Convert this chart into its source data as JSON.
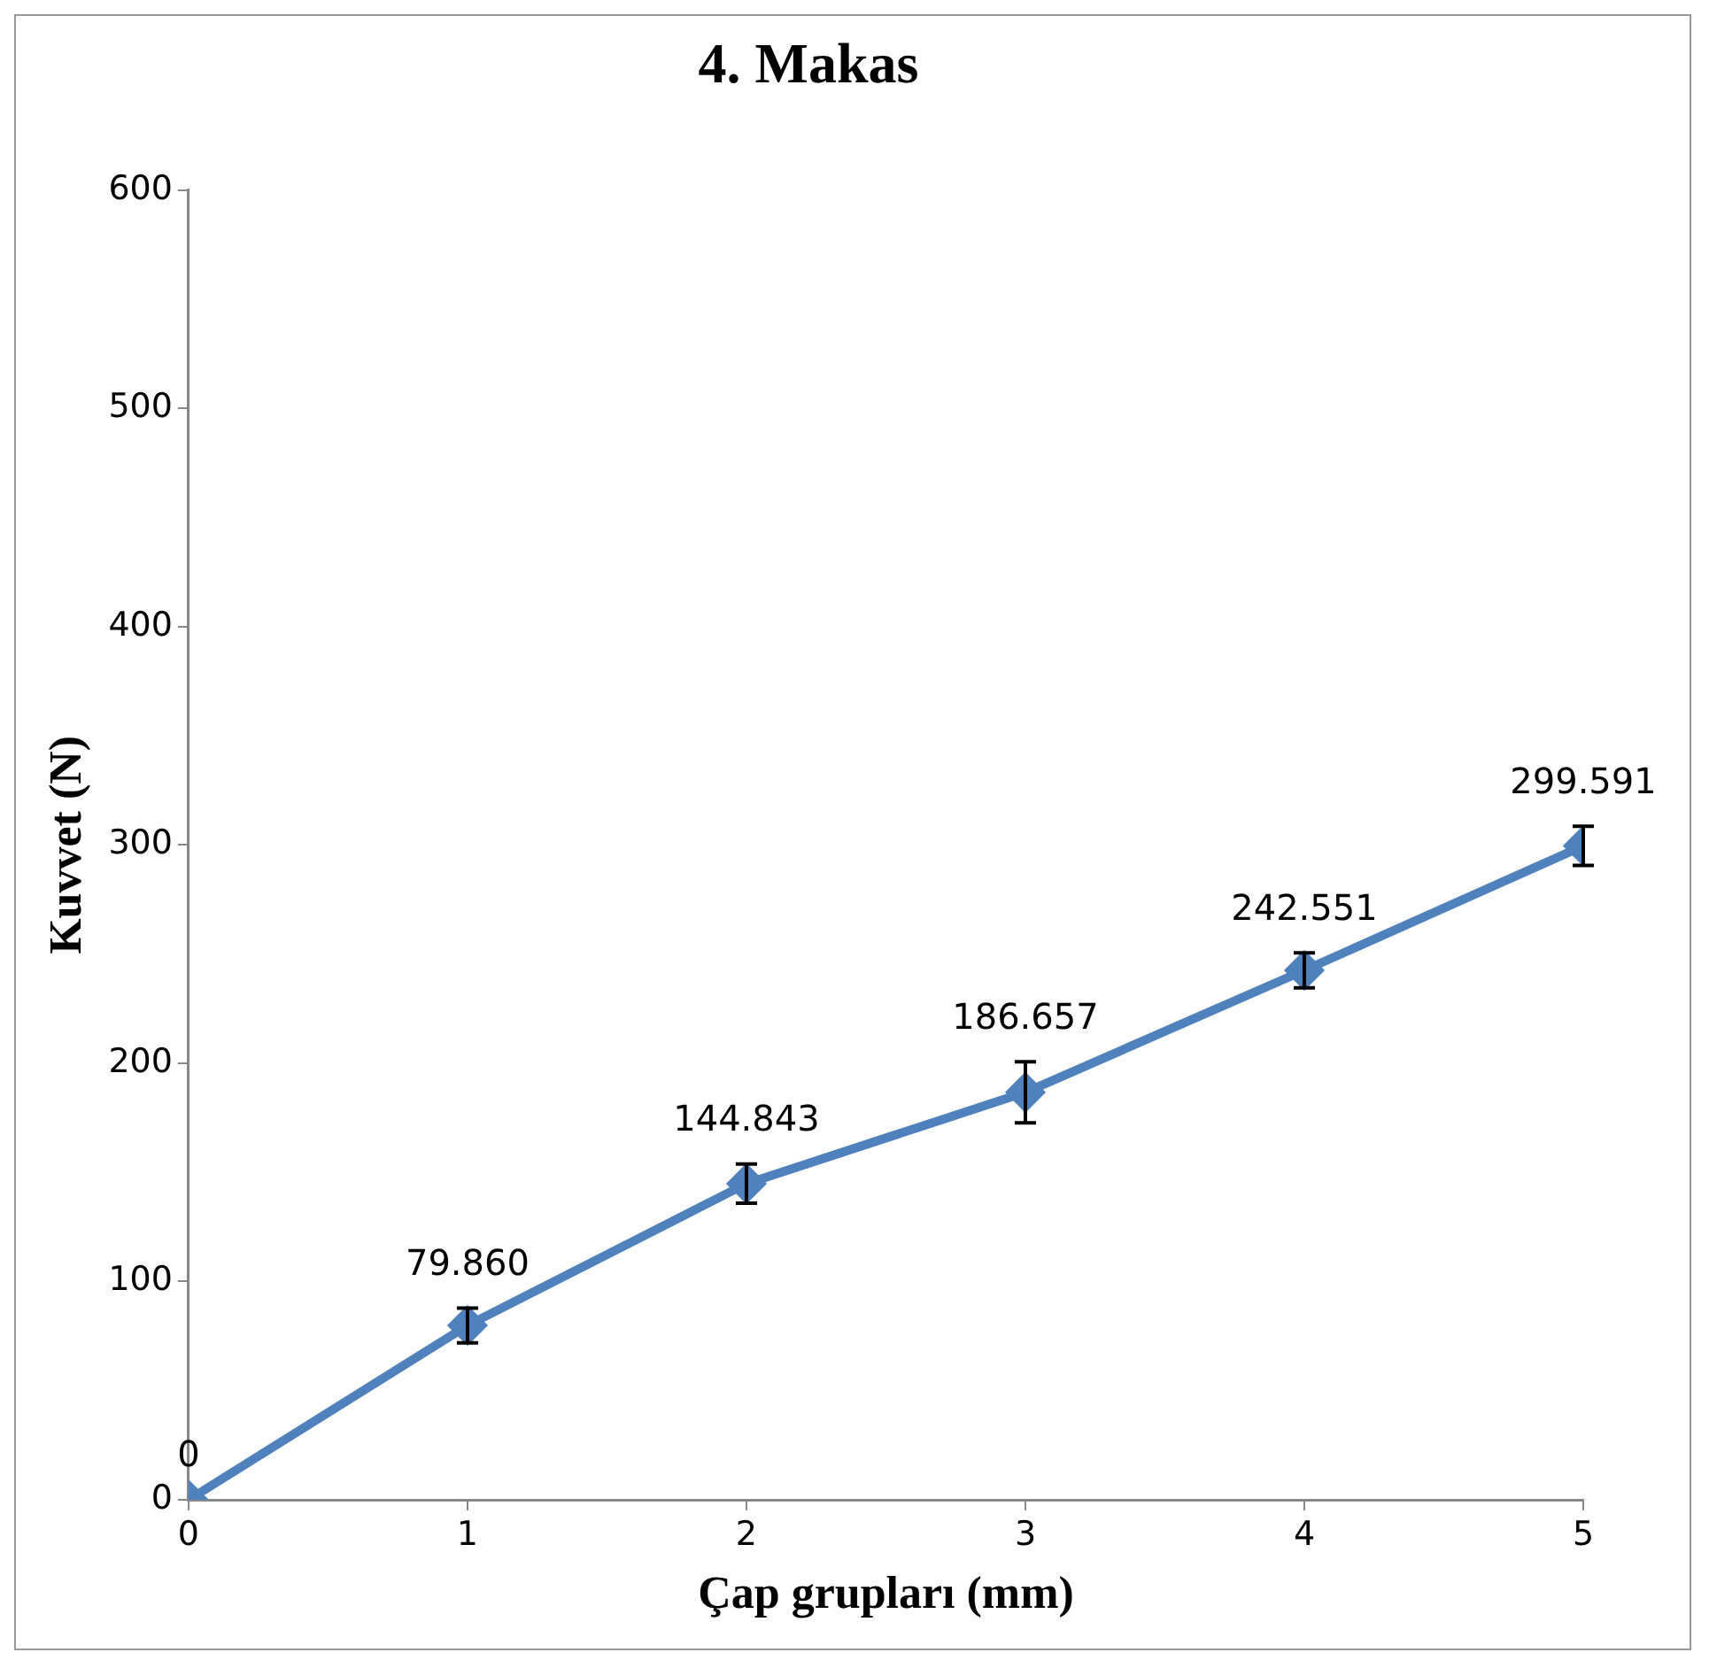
{
  "chart_data": {
    "type": "line",
    "title": "4. Makas",
    "xlabel": "Çap grupları (mm)",
    "ylabel": "Kuvvet (N)",
    "x": [
      0,
      1,
      2,
      3,
      4,
      5
    ],
    "series": [
      {
        "color": "#4f81bd",
        "values": [
          0,
          79.86,
          144.843,
          186.657,
          242.551,
          299.591
        ],
        "errors": [
          null,
          8,
          9,
          14,
          8,
          9
        ]
      }
    ],
    "xlim": [
      0,
      5
    ],
    "xticks": [
      0,
      1,
      2,
      3,
      4,
      5
    ],
    "ylim": [
      0,
      600
    ],
    "yticks": [
      0,
      100,
      200,
      300,
      400,
      500,
      600
    ],
    "value_labels": [
      "0",
      "79.860",
      "144.843",
      "186.657",
      "242.551",
      "299.591"
    ],
    "marker": "diamond",
    "line_style": "solid",
    "grid": false,
    "legend": false
  }
}
